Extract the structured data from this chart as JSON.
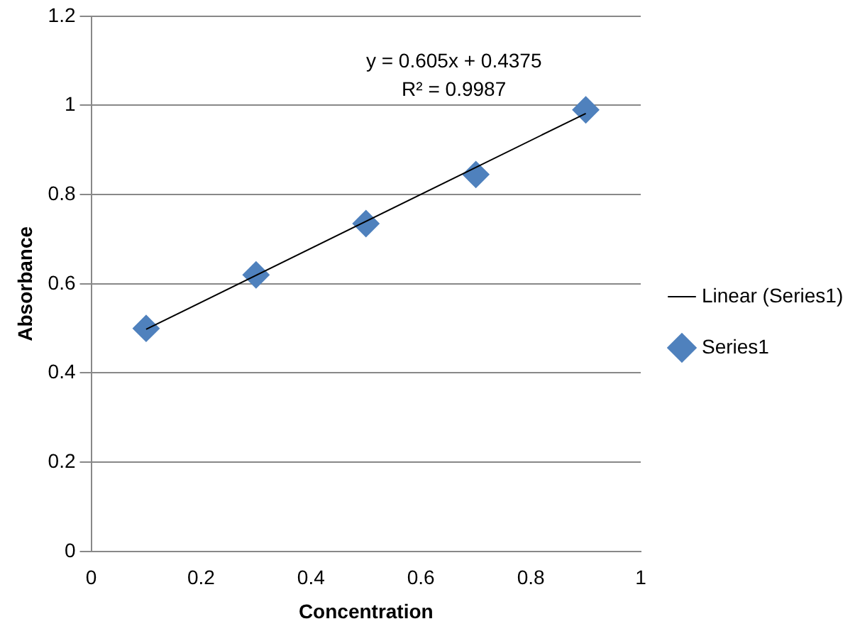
{
  "chart_data": {
    "type": "scatter",
    "xlabel": "Concentration",
    "ylabel": "Absorbance",
    "xlim": [
      0,
      1
    ],
    "xticks": [
      0,
      0.2,
      0.4,
      0.6,
      0.8,
      1
    ],
    "ylim": [
      0,
      1.2
    ],
    "yticks": [
      0,
      0.2,
      0.4,
      0.6,
      0.8,
      1,
      1.2
    ],
    "grid": "y",
    "legend": "right",
    "marker": "diamond",
    "series": [
      {
        "name": "Series1",
        "color": "#4f81bd",
        "x": [
          0.1,
          0.3,
          0.5,
          0.7,
          0.9
        ],
        "values": [
          0.5,
          0.62,
          0.735,
          0.845,
          0.99
        ]
      },
      {
        "name": "Linear (Series1)",
        "type": "line",
        "color": "#000000",
        "marker": "none",
        "x": [
          0.1,
          0.9
        ],
        "values": [
          0.498,
          0.982
        ]
      }
    ],
    "annotations": [
      "y = 0.605x + 0.4375",
      "R² = 0.9987"
    ]
  }
}
